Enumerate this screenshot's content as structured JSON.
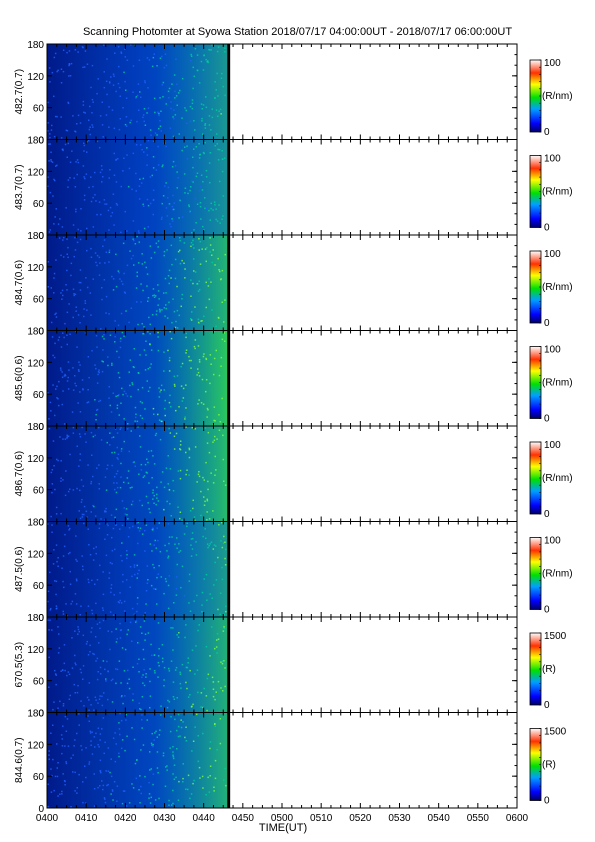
{
  "title": "Scanning Photomter at Syowa Station  2018/07/17 04:00:00UT - 2018/07/17 06:00:00UT",
  "chart_data": {
    "type": "heatmap",
    "xlabel": "TIME(UT)",
    "x_ticks": [
      "0400",
      "0410",
      "0420",
      "0430",
      "0440",
      "0450",
      "0500",
      "0510",
      "0520",
      "0530",
      "0540",
      "0550",
      "0600"
    ],
    "y_ticks": [
      "0",
      "60",
      "120",
      "180"
    ],
    "ylim": [
      0,
      180
    ],
    "data_end_tick_index": 4.6,
    "panels": [
      {
        "label": "482.7(0.7)",
        "colorbar_max": "100",
        "colorbar_min": "0",
        "unit": "(R/nm)",
        "intensity": 0.3
      },
      {
        "label": "483.7(0.7)",
        "colorbar_max": "100",
        "colorbar_min": "0",
        "unit": "(R/nm)",
        "intensity": 0.28
      },
      {
        "label": "484.7(0.6)",
        "colorbar_max": "100",
        "colorbar_min": "0",
        "unit": "(R/nm)",
        "intensity": 0.42
      },
      {
        "label": "485.6(0.6)",
        "colorbar_max": "100",
        "colorbar_min": "0",
        "unit": "(R/nm)",
        "intensity": 0.5
      },
      {
        "label": "486.7(0.6)",
        "colorbar_max": "100",
        "colorbar_min": "0",
        "unit": "(R/nm)",
        "intensity": 0.45
      },
      {
        "label": "487.5(0.6)",
        "colorbar_max": "100",
        "colorbar_min": "0",
        "unit": "(R/nm)",
        "intensity": 0.32
      },
      {
        "label": "670.5(5.3)",
        "colorbar_max": "1500",
        "colorbar_min": "0",
        "unit": "(R)",
        "intensity": 0.4
      },
      {
        "label": "844.6(0.7)",
        "colorbar_max": "1500",
        "colorbar_min": "0",
        "unit": "(R)",
        "intensity": 0.4
      }
    ]
  }
}
